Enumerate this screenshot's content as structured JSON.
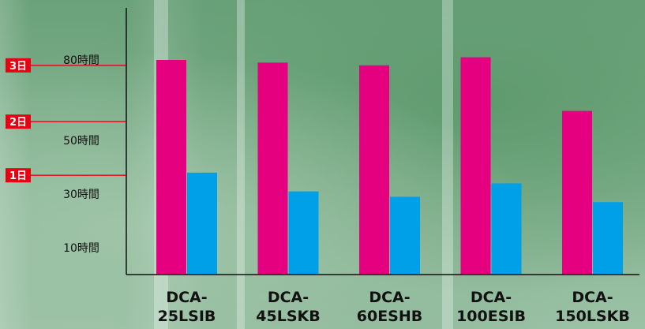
{
  "chart_data": {
    "type": "bar",
    "categories": [
      [
        "DCA-",
        "25LSIB"
      ],
      [
        "DCA-",
        "45LSKB"
      ],
      [
        "DCA-",
        "60ESHB"
      ],
      [
        "DCA-",
        "100ESIB"
      ],
      [
        "DCA-",
        "150LSKB"
      ]
    ],
    "series": [
      {
        "color": "#e4007f",
        "values": [
          80,
          79,
          78,
          81,
          61
        ]
      },
      {
        "color": "#00a0e9",
        "values": [
          38,
          31,
          29,
          34,
          27
        ]
      }
    ],
    "ylim": [
      0,
      100
    ],
    "y_ticks": [
      {
        "value": 10,
        "label": "10時間"
      },
      {
        "value": 30,
        "label": "30時間"
      },
      {
        "value": 50,
        "label": "50時間"
      },
      {
        "value": 80,
        "label": "80時間"
      }
    ],
    "day_markers": [
      {
        "value": 78,
        "label": "3日"
      },
      {
        "value": 57,
        "label": "2日"
      },
      {
        "value": 37,
        "label": "1日"
      }
    ],
    "grid": false,
    "colors": {
      "axis": "#111111",
      "day_marker": "#e60012"
    }
  }
}
